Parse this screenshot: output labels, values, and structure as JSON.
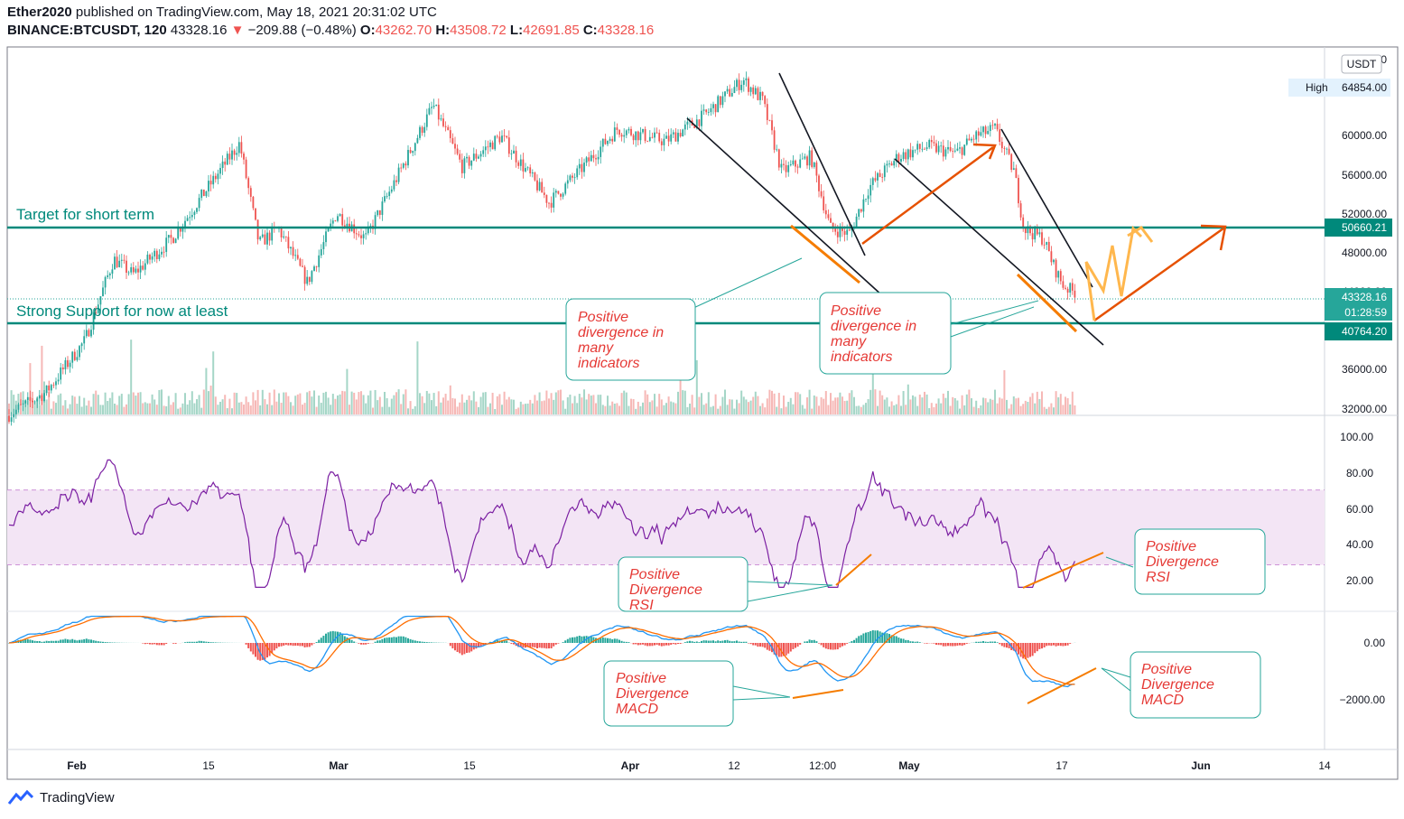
{
  "header": {
    "publisher": "Ether2020",
    "published_text": "published on TradingView.com, May 18, 2021 20:31:02 UTC",
    "symbol": "BINANCE:BTCUSDT, 120",
    "last": "43328.16",
    "change_arrow": "▼",
    "change": "−209.88 (−0.48%)",
    "o_label": "O:",
    "o": "43262.70",
    "h_label": "H:",
    "h": "43508.72",
    "l_label": "L:",
    "l": "42691.85",
    "c_label": "C:",
    "c": "43328.16"
  },
  "footer": {
    "brand": "TradingView",
    "logo_icon": "tradingview-logo-icon"
  },
  "colors": {
    "teal": "#26a69a",
    "teal_dark": "#00897b",
    "red": "#ef5350",
    "orange": "#f57c00",
    "orange_light": "#ffb74d",
    "dark_orange": "#e65100",
    "rsi": "#7b1fa2",
    "rsi_band": "#f3e5f5",
    "macd": "#2196f3",
    "signal": "#ff6d00"
  },
  "chart_data": {
    "type": "candlestick",
    "x_axis": {
      "labels": [
        "Feb",
        "15",
        "Mar",
        "15",
        "Apr",
        "12",
        "12:00",
        "May",
        "17",
        "Jun",
        "14"
      ],
      "bold_labels": [
        "Feb",
        "Mar",
        "Apr",
        "May",
        "Jun"
      ]
    },
    "price_axis": {
      "unit": "USDT",
      "ticks": [
        "64000.00",
        "60000.00",
        "56000.00",
        "52000.00",
        "48000.00",
        "44000.00",
        "36000.00",
        "32000.00"
      ],
      "range": [
        31500,
        66500
      ],
      "high_label": "High",
      "high_value": "64854.00",
      "last_price": "43328.16",
      "countdown": "01:28:59",
      "levels": [
        {
          "name": "Target for short term",
          "value": 50660.21,
          "label": "50660.21"
        },
        {
          "name": "Strong Support for now at least",
          "value": 40764.2,
          "label": "40764.20"
        }
      ]
    },
    "price_keypoints": [
      [
        "2021-01-28",
        31200
      ],
      [
        "2021-02-01",
        33500
      ],
      [
        "2021-02-05",
        38500
      ],
      [
        "2021-02-08",
        46500
      ],
      [
        "2021-02-10",
        45000
      ],
      [
        "2021-02-14",
        48500
      ],
      [
        "2021-02-17",
        52500
      ],
      [
        "2021-02-21",
        57800
      ],
      [
        "2021-02-23",
        48000
      ],
      [
        "2021-02-25",
        49500
      ],
      [
        "2021-02-28",
        44200
      ],
      [
        "2021-03-03",
        51000
      ],
      [
        "2021-03-06",
        48500
      ],
      [
        "2021-03-09",
        54000
      ],
      [
        "2021-03-13",
        61500
      ],
      [
        "2021-03-16",
        55500
      ],
      [
        "2021-03-20",
        58500
      ],
      [
        "2021-03-25",
        52000
      ],
      [
        "2021-03-28",
        55000
      ],
      [
        "2021-04-01",
        59200
      ],
      [
        "2021-04-06",
        58000
      ],
      [
        "2021-04-10",
        60500
      ],
      [
        "2021-04-14",
        64000
      ],
      [
        "2021-04-16",
        62000
      ],
      [
        "2021-04-18",
        55000
      ],
      [
        "2021-04-21",
        56500
      ],
      [
        "2021-04-23",
        49500
      ],
      [
        "2021-04-25",
        49000
      ],
      [
        "2021-04-27",
        53500
      ],
      [
        "2021-04-30",
        56500
      ],
      [
        "2021-05-03",
        57500
      ],
      [
        "2021-05-06",
        56800
      ],
      [
        "2021-05-08",
        58500
      ],
      [
        "2021-05-10",
        59200
      ],
      [
        "2021-05-12",
        55000
      ],
      [
        "2021-05-13",
        49500
      ],
      [
        "2021-05-15",
        48500
      ],
      [
        "2021-05-16",
        46000
      ],
      [
        "2021-05-17",
        44000
      ],
      [
        "2021-05-18",
        43328
      ]
    ],
    "rsi": {
      "ticks": [
        "100.00",
        "80.00",
        "60.00",
        "40.00",
        "20.00"
      ],
      "band": [
        30,
        70
      ],
      "range": [
        10,
        105
      ]
    },
    "macd": {
      "ticks": [
        "0.00",
        "−2000.00"
      ],
      "range": [
        -2300,
        1000
      ]
    },
    "annotations": [
      {
        "name": "Positive divergence in many indicators (April)",
        "lines": [
          "Positive",
          "divergence in",
          "many",
          "indicators"
        ]
      },
      {
        "name": "Positive divergence in many indicators (May)",
        "lines": [
          "Positive",
          "divergence in",
          "many",
          "indicators"
        ]
      },
      {
        "name": "Positive Divergence RSI (April)",
        "lines": [
          "Positive",
          "Divergence",
          "RSI"
        ]
      },
      {
        "name": "Positive Divergence RSI (May)",
        "lines": [
          "Positive",
          "Divergence",
          "RSI"
        ]
      },
      {
        "name": "Positive Divergence MACD (April)",
        "lines": [
          "Positive",
          "Divergence",
          "MACD"
        ]
      },
      {
        "name": "Positive Divergence MACD (May)",
        "lines": [
          "Positive",
          "Divergence",
          "MACD"
        ]
      }
    ]
  }
}
